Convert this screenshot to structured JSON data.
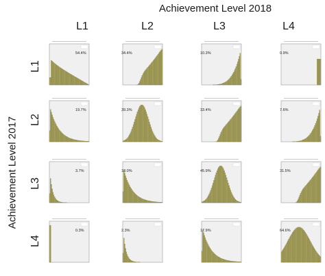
{
  "col_title": "Achievement Level 2018",
  "row_title": "Achievement Level 2017",
  "col_labels": [
    "L1",
    "L2",
    "L3",
    "L4"
  ],
  "row_labels": [
    "L1",
    "L2",
    "L3",
    "L4"
  ],
  "colors": {
    "bar_fill": "#a8a25a",
    "bar_edge": "#6e6a3a",
    "panel_bg": "#f0f0f0",
    "frame": "#9a9a9a"
  },
  "chart_data": {
    "type": "bar",
    "layout": "4x4 grid of histograms",
    "col_title": "Achievement Level 2018",
    "row_title": "Achievement Level 2017",
    "cols": [
      "L1",
      "L2",
      "L3",
      "L4"
    ],
    "rows": [
      "L1",
      "L2",
      "L3",
      "L4"
    ],
    "cells": [
      [
        {
          "pct": "54.4%",
          "shape": "decay-flat"
        },
        {
          "pct": "34.4%",
          "shape": "rise-late"
        },
        {
          "pct": "10.3%",
          "shape": "rise-steep"
        },
        {
          "pct": "0.9%",
          "shape": "edge-spike"
        }
      ],
      [
        {
          "pct": "19.7%",
          "shape": "decay"
        },
        {
          "pct": "39.3%",
          "shape": "hump-mid"
        },
        {
          "pct": "33.4%",
          "shape": "rise-late"
        },
        {
          "pct": "7.6%",
          "shape": "rise-steep"
        }
      ],
      [
        {
          "pct": "3.7%",
          "shape": "decay-sharp"
        },
        {
          "pct": "18.0%",
          "shape": "decay"
        },
        {
          "pct": "45.9%",
          "shape": "hump-mid"
        },
        {
          "pct": "31.5%",
          "shape": "rise-late"
        }
      ],
      [
        {
          "pct": "0.3%",
          "shape": "spike-start"
        },
        {
          "pct": "2.3%",
          "shape": "decay-sharp"
        },
        {
          "pct": "17.9%",
          "shape": "decay"
        },
        {
          "pct": "64.6%",
          "shape": "hump-wide"
        }
      ]
    ]
  }
}
